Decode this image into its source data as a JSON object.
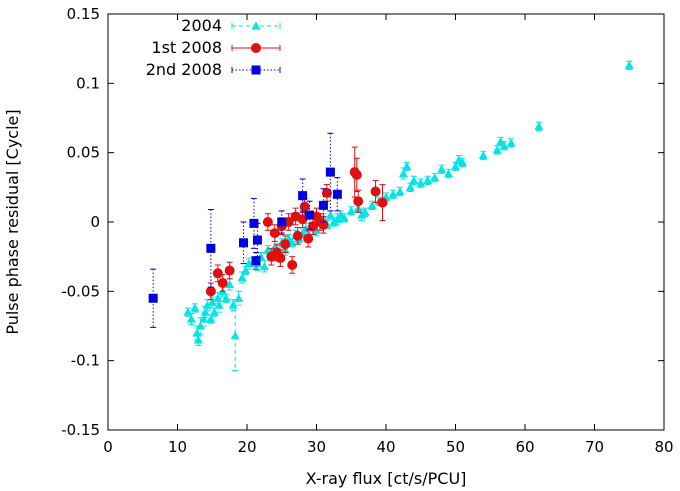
{
  "chart_data": {
    "type": "scatter",
    "title": "",
    "xlabel": "X-ray flux [ct/s/PCU]",
    "ylabel": "Pulse phase residual  [Cycle]",
    "xlim": [
      0,
      80
    ],
    "ylim": [
      -0.15,
      0.15
    ],
    "xticks": [
      0,
      10,
      20,
      30,
      40,
      50,
      60,
      70,
      80
    ],
    "yticks": [
      -0.15,
      -0.1,
      -0.05,
      0,
      0.05,
      0.1,
      0.15
    ],
    "xtick_labels": [
      "0",
      "10",
      "20",
      "30",
      "40",
      "50",
      "60",
      "70",
      "80"
    ],
    "ytick_labels": [
      "-0.15",
      "-0.1",
      "-0.05",
      "0",
      "0.05",
      "0.1",
      "0.15"
    ],
    "legend_position": "top-left",
    "series": [
      {
        "name": "2004",
        "marker": "triangle",
        "line_style": "dashed",
        "color": "#00e5e5",
        "points": [
          [
            11.5,
            -0.065,
            0.003
          ],
          [
            12.0,
            -0.07,
            0.004
          ],
          [
            12.5,
            -0.062,
            0.003
          ],
          [
            12.8,
            -0.08,
            0.005
          ],
          [
            13.0,
            -0.085,
            0.004
          ],
          [
            13.3,
            -0.075,
            0.006
          ],
          [
            13.8,
            -0.07,
            0.005
          ],
          [
            14.0,
            -0.065,
            0.004
          ],
          [
            14.3,
            -0.06,
            0.004
          ],
          [
            14.8,
            -0.07,
            0.003
          ],
          [
            15.0,
            -0.058,
            0.004
          ],
          [
            15.3,
            -0.065,
            0.003
          ],
          [
            15.8,
            -0.055,
            0.004
          ],
          [
            16.0,
            -0.06,
            0.005
          ],
          [
            16.5,
            -0.05,
            0.004
          ],
          [
            17.0,
            -0.055,
            0.003
          ],
          [
            17.5,
            -0.045,
            0.004
          ],
          [
            18.0,
            -0.06,
            0.004
          ],
          [
            18.3,
            -0.082,
            0.025
          ],
          [
            18.8,
            -0.055,
            0.005
          ],
          [
            19.3,
            -0.04,
            0.004
          ],
          [
            19.8,
            -0.035,
            0.003
          ],
          [
            20.3,
            -0.03,
            0.004
          ],
          [
            21.0,
            -0.028,
            0.003
          ],
          [
            21.5,
            -0.03,
            0.005
          ],
          [
            22.0,
            -0.025,
            0.003
          ],
          [
            22.5,
            -0.032,
            0.004
          ],
          [
            23.0,
            -0.02,
            0.003
          ],
          [
            23.5,
            -0.025,
            0.003
          ],
          [
            24.0,
            -0.018,
            0.004
          ],
          [
            24.5,
            -0.022,
            0.003
          ],
          [
            25.0,
            -0.015,
            0.003
          ],
          [
            25.5,
            -0.02,
            0.004
          ],
          [
            26.0,
            -0.012,
            0.003
          ],
          [
            26.5,
            -0.015,
            0.003
          ],
          [
            27.0,
            -0.01,
            0.004
          ],
          [
            27.5,
            -0.012,
            0.003
          ],
          [
            28.0,
            -0.008,
            0.003
          ],
          [
            28.5,
            -0.005,
            0.004
          ],
          [
            29.0,
            -0.01,
            0.003
          ],
          [
            29.5,
            -0.003,
            0.003
          ],
          [
            30.0,
            -0.006,
            0.004
          ],
          [
            30.5,
            0.0,
            0.003
          ],
          [
            31.0,
            0.003,
            0.003
          ],
          [
            31.5,
            -0.002,
            0.003
          ],
          [
            32.0,
            0.005,
            0.003
          ],
          [
            32.5,
            0.0,
            0.003
          ],
          [
            33.0,
            0.002,
            0.004
          ],
          [
            33.5,
            0.005,
            0.003
          ],
          [
            34.0,
            0.003,
            0.003
          ],
          [
            35.0,
            0.008,
            0.003
          ],
          [
            36.0,
            0.01,
            0.003
          ],
          [
            36.5,
            0.005,
            0.004
          ],
          [
            37.0,
            0.007,
            0.003
          ],
          [
            38.0,
            0.012,
            0.003
          ],
          [
            39.0,
            0.015,
            0.003
          ],
          [
            40.0,
            0.018,
            0.003
          ],
          [
            41.0,
            0.02,
            0.003
          ],
          [
            42.0,
            0.022,
            0.003
          ],
          [
            42.5,
            0.035,
            0.004
          ],
          [
            43.0,
            0.04,
            0.003
          ],
          [
            43.5,
            0.025,
            0.003
          ],
          [
            44.0,
            0.03,
            0.003
          ],
          [
            45.0,
            0.028,
            0.003
          ],
          [
            46.0,
            0.03,
            0.003
          ],
          [
            47.0,
            0.032,
            0.003
          ],
          [
            48.0,
            0.038,
            0.003
          ],
          [
            49.0,
            0.035,
            0.003
          ],
          [
            50.0,
            0.04,
            0.003
          ],
          [
            50.5,
            0.045,
            0.003
          ],
          [
            51.0,
            0.043,
            0.003
          ],
          [
            54.0,
            0.048,
            0.003
          ],
          [
            56.0,
            0.052,
            0.003
          ],
          [
            56.5,
            0.058,
            0.003
          ],
          [
            57.0,
            0.055,
            0.003
          ],
          [
            58.0,
            0.057,
            0.003
          ],
          [
            62.0,
            0.069,
            0.003
          ],
          [
            75.0,
            0.113,
            0.003
          ]
        ]
      },
      {
        "name": "1st 2008",
        "marker": "circle",
        "line_style": "solid",
        "color": "#e01010",
        "points": [
          [
            14.8,
            -0.05,
            0.006
          ],
          [
            15.8,
            -0.037,
            0.006
          ],
          [
            16.5,
            -0.044,
            0.006
          ],
          [
            17.5,
            -0.035,
            0.006
          ],
          [
            23.0,
            0.0,
            0.006
          ],
          [
            23.5,
            -0.025,
            0.006
          ],
          [
            24.0,
            -0.008,
            0.006
          ],
          [
            24.3,
            -0.022,
            0.006
          ],
          [
            24.8,
            -0.026,
            0.006
          ],
          [
            25.0,
            -0.003,
            0.006
          ],
          [
            25.5,
            -0.016,
            0.006
          ],
          [
            26.0,
            0.0,
            0.006
          ],
          [
            26.5,
            -0.031,
            0.006
          ],
          [
            27.0,
            0.004,
            0.006
          ],
          [
            27.3,
            -0.01,
            0.006
          ],
          [
            28.0,
            0.002,
            0.006
          ],
          [
            28.3,
            0.011,
            0.006
          ],
          [
            28.8,
            -0.012,
            0.006
          ],
          [
            29.5,
            -0.003,
            0.006
          ],
          [
            30.0,
            0.004,
            0.006
          ],
          [
            30.5,
            0.0,
            0.006
          ],
          [
            31.0,
            -0.002,
            0.006
          ],
          [
            31.5,
            0.021,
            0.006
          ],
          [
            35.5,
            0.036,
            0.018
          ],
          [
            35.8,
            0.034,
            0.012
          ],
          [
            36.0,
            0.015,
            0.008
          ],
          [
            38.5,
            0.022,
            0.008
          ],
          [
            39.5,
            0.014,
            0.013
          ]
        ]
      },
      {
        "name": "2nd 2008",
        "marker": "square",
        "line_style": "dotted",
        "color": "#0000e0",
        "points": [
          [
            6.5,
            -0.055,
            0.021
          ],
          [
            14.8,
            -0.019,
            0.028
          ],
          [
            19.5,
            -0.015,
            0.015
          ],
          [
            21.0,
            -0.001,
            0.018
          ],
          [
            21.5,
            -0.013,
            0.012
          ],
          [
            21.3,
            -0.028,
            0.006
          ],
          [
            25.0,
            0.0,
            0.008
          ],
          [
            28.0,
            0.019,
            0.012
          ],
          [
            29.0,
            0.005,
            0.01
          ],
          [
            31.0,
            0.012,
            0.012
          ],
          [
            32.0,
            0.036,
            0.028
          ],
          [
            33.0,
            0.02,
            0.012
          ]
        ]
      }
    ]
  }
}
